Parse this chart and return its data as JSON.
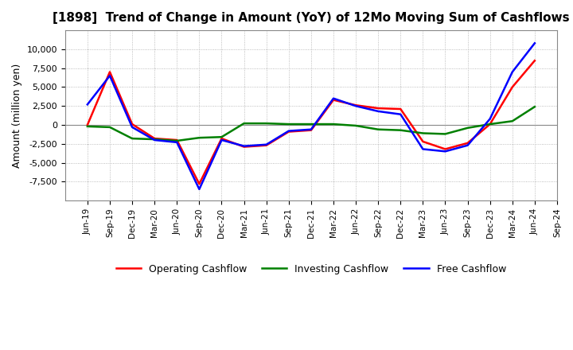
{
  "title": "[1898]  Trend of Change in Amount (YoY) of 12Mo Moving Sum of Cashflows",
  "ylabel": "Amount (million yen)",
  "x_labels": [
    "Jun-19",
    "Sep-19",
    "Dec-19",
    "Mar-20",
    "Jun-20",
    "Sep-20",
    "Dec-20",
    "Mar-21",
    "Jun-21",
    "Sep-21",
    "Dec-21",
    "Mar-22",
    "Jun-22",
    "Sep-22",
    "Dec-22",
    "Mar-23",
    "Jun-23",
    "Sep-23",
    "Dec-23",
    "Mar-24",
    "Jun-24",
    "Sep-24"
  ],
  "operating": [
    0,
    7000,
    100,
    -1800,
    -2000,
    -7800,
    -1800,
    -2900,
    -2700,
    -900,
    -700,
    3300,
    2600,
    2200,
    2100,
    -2200,
    -3200,
    -2400,
    100,
    5000,
    8500,
    null
  ],
  "investing": [
    -200,
    -300,
    -1800,
    -1900,
    -2100,
    -1700,
    -1600,
    200,
    200,
    100,
    100,
    100,
    -100,
    -600,
    -700,
    -1100,
    -1200,
    -400,
    100,
    500,
    2400,
    null
  ],
  "free": [
    2700,
    6500,
    -300,
    -2000,
    -2300,
    -8500,
    -2000,
    -2800,
    -2600,
    -800,
    -600,
    3500,
    2500,
    1800,
    1400,
    -3200,
    -3500,
    -2700,
    800,
    7000,
    10800,
    null
  ],
  "operating_color": "#ff0000",
  "investing_color": "#008000",
  "free_color": "#0000ff",
  "ylim": [
    -10000,
    12500
  ],
  "yticks": [
    -7500,
    -5000,
    -2500,
    0,
    2500,
    5000,
    7500,
    10000
  ],
  "background_color": "#ffffff",
  "grid_color": "#aaaaaa",
  "legend_labels": [
    "Operating Cashflow",
    "Investing Cashflow",
    "Free Cashflow"
  ]
}
